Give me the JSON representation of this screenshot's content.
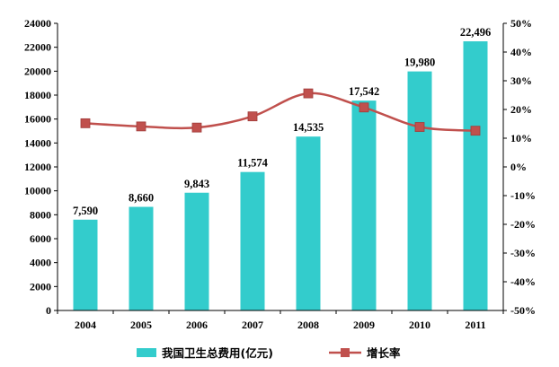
{
  "chart_data": {
    "type": "bar+line",
    "categories": [
      "2004",
      "2005",
      "2006",
      "2007",
      "2008",
      "2009",
      "2010",
      "2011"
    ],
    "series": [
      {
        "name": "我国卫生总费用(亿元)",
        "kind": "bar",
        "axis": "left",
        "color": "#33CCCC",
        "values": [
          7590,
          8660,
          9843,
          11574,
          14535,
          17542,
          19980,
          22496
        ],
        "labels": [
          "7,590",
          "8,660",
          "9,843",
          "11,574",
          "14,535",
          "17,542",
          "19,980",
          "22,496"
        ]
      },
      {
        "name": "增长率",
        "kind": "line",
        "axis": "right",
        "color": "#C0504D",
        "values": [
          15.2,
          14.1,
          13.7,
          17.6,
          25.6,
          20.7,
          13.9,
          12.6
        ]
      }
    ],
    "y_left": {
      "min": 0,
      "max": 24000,
      "ticks": [
        "0",
        "2000",
        "4000",
        "6000",
        "8000",
        "10000",
        "12000",
        "14000",
        "16000",
        "18000",
        "20000",
        "22000",
        "24000"
      ]
    },
    "y_right": {
      "min": -50,
      "max": 50,
      "unit": "%",
      "ticks": [
        "-50%",
        "-40%",
        "-30%",
        "-20%",
        "-10%",
        "0%",
        "10%",
        "20%",
        "30%",
        "40%",
        "50%"
      ]
    },
    "grid": false,
    "legend_position": "bottom"
  }
}
